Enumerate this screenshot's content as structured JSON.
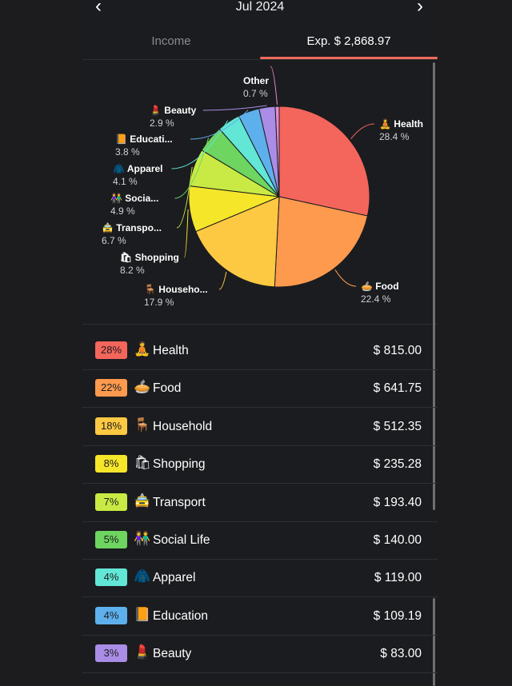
{
  "header": {
    "month": "Jul 2024",
    "prev_icon": "chevron-left",
    "next_icon": "chevron-right"
  },
  "tabs": {
    "income": "Income",
    "expense": "Exp. $ 2,868.97"
  },
  "chart_data": {
    "type": "pie",
    "slices": [
      {
        "name": "Health",
        "short": "Health",
        "icon": "🧘",
        "pct": 28.4,
        "pct_label": "28.4 %",
        "color": "#f4655c"
      },
      {
        "name": "Food",
        "short": "Food",
        "icon": "🥧",
        "pct": 22.4,
        "pct_label": "22.4 %",
        "color": "#fd9a4e"
      },
      {
        "name": "Household",
        "short": "Househo...",
        "icon": "🪑",
        "pct": 17.9,
        "pct_label": "17.9 %",
        "color": "#fdc942"
      },
      {
        "name": "Shopping",
        "short": "Shopping",
        "icon": "🛍",
        "pct": 8.2,
        "pct_label": "8.2 %",
        "color": "#f6e62a"
      },
      {
        "name": "Transport",
        "short": "Transpo...",
        "icon": "🚖",
        "pct": 6.7,
        "pct_label": "6.7 %",
        "color": "#c9ea44"
      },
      {
        "name": "Social Life",
        "short": "Socia...",
        "icon": "👫",
        "pct": 4.9,
        "pct_label": "4.9 %",
        "color": "#6dd560"
      },
      {
        "name": "Apparel",
        "short": "Apparel",
        "icon": "🧥",
        "pct": 4.1,
        "pct_label": "4.1 %",
        "color": "#62e6d6"
      },
      {
        "name": "Education",
        "short": "Educati...",
        "icon": "📙",
        "pct": 3.8,
        "pct_label": "3.8 %",
        "color": "#5db0ec"
      },
      {
        "name": "Beauty",
        "short": "Beauty",
        "icon": "💄",
        "pct": 2.9,
        "pct_label": "2.9 %",
        "color": "#a98de6"
      },
      {
        "name": "Other",
        "short": "Other",
        "icon": "",
        "pct": 0.7,
        "pct_label": "0.7 %",
        "color": "#e58bd0"
      }
    ]
  },
  "list": [
    {
      "badge": "28%",
      "icon": "🧘",
      "label": "Health",
      "amount": "$ 815.00",
      "color": "#f4655c"
    },
    {
      "badge": "22%",
      "icon": "🥧",
      "label": "Food",
      "amount": "$ 641.75",
      "color": "#fd9a4e"
    },
    {
      "badge": "18%",
      "icon": "🪑",
      "label": "Household",
      "amount": "$ 512.35",
      "color": "#fdc942"
    },
    {
      "badge": "8%",
      "icon": "🛍",
      "label": "Shopping",
      "amount": "$ 235.28",
      "color": "#f6e62a"
    },
    {
      "badge": "7%",
      "icon": "🚖",
      "label": "Transport",
      "amount": "$ 193.40",
      "color": "#c9ea44"
    },
    {
      "badge": "5%",
      "icon": "👫",
      "label": "Social Life",
      "amount": "$ 140.00",
      "color": "#6dd560"
    },
    {
      "badge": "4%",
      "icon": "🧥",
      "label": "Apparel",
      "amount": "$ 119.00",
      "color": "#62e6d6"
    },
    {
      "badge": "4%",
      "icon": "📙",
      "label": "Education",
      "amount": "$ 109.19",
      "color": "#5db0ec"
    },
    {
      "badge": "3%",
      "icon": "💄",
      "label": "Beauty",
      "amount": "$ 83.00",
      "color": "#a98de6"
    }
  ]
}
